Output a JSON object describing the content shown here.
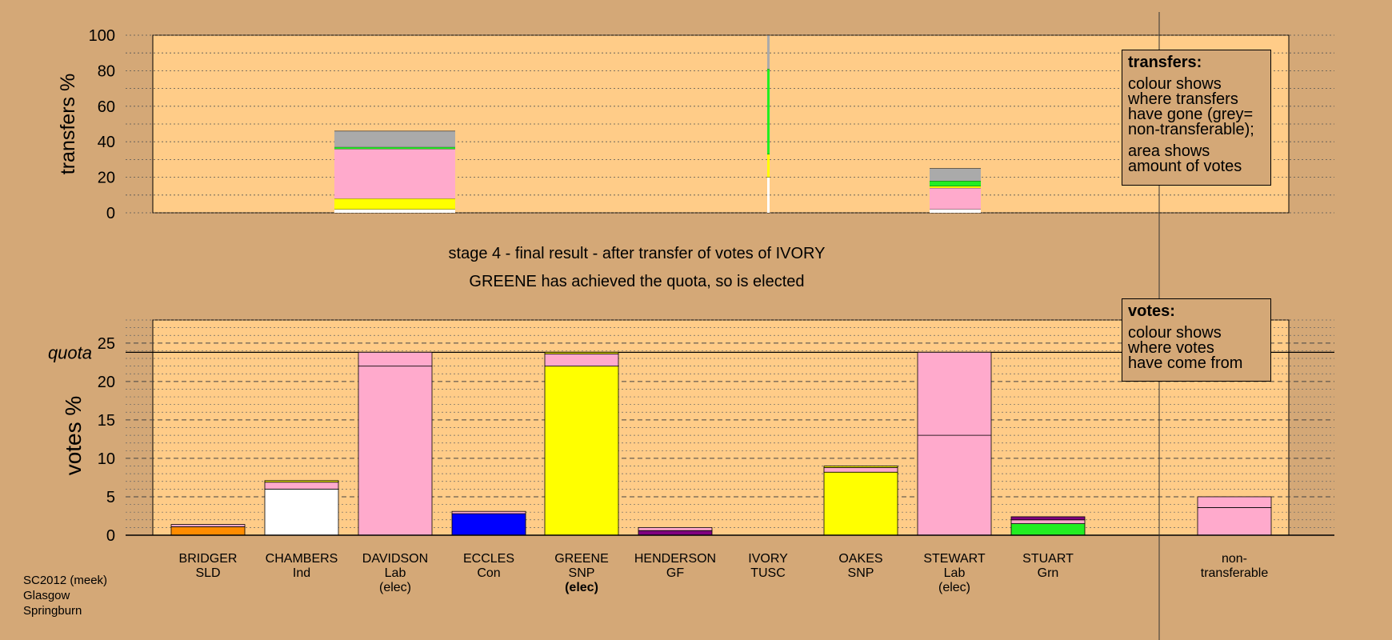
{
  "captions": {
    "stage_line": "stage 4 - final result - after transfer of votes of IVORY",
    "result_line": "GREENE has achieved the quota, so is elected"
  },
  "legend_transfers": {
    "title": "transfers:",
    "lines_a": [
      "colour shows",
      "where transfers",
      "have gone (grey=",
      "non-transferable);"
    ],
    "lines_b": [
      "area shows",
      "amount of votes"
    ]
  },
  "legend_votes": {
    "title": "votes:",
    "lines": [
      "colour shows",
      "where votes",
      "have come from"
    ]
  },
  "source": [
    "SC2012 (meek)",
    "Glasgow",
    "Springburn"
  ],
  "colors": {
    "background": "#d4a877",
    "plot_background": "#ffcc88",
    "SLD": "#ff8c00",
    "Ind": "#ffffff",
    "Lab": "#ffaacc",
    "Con": "#0000ff",
    "SNP": "#ffff00",
    "GF": "#800080",
    "TUSC": "#cc0000",
    "Grn": "#22ee22",
    "non_transferable": "#aaaaaa"
  },
  "chart_data": [
    {
      "type": "bar",
      "title": "",
      "ylabel": "transfers %",
      "ylim": [
        0,
        100
      ],
      "yticks": [
        0,
        20,
        40,
        60,
        80,
        100
      ],
      "grid": true,
      "note": "transfers of the votes of IVORY; colour shows where transfers have gone, area shows amount of votes",
      "categories": [
        "DAVIDSON",
        "IVORY",
        "STEWART"
      ],
      "bars": [
        {
          "candidate": "DAVIDSON",
          "segments": [
            {
              "color": "#ffffff",
              "value": 2
            },
            {
              "color": "#ffff00",
              "value": 6
            },
            {
              "color": "#ffaacc",
              "value": 28
            },
            {
              "color": "#22ee22",
              "value": 1
            },
            {
              "color": "#aaaaaa",
              "value": 9
            }
          ]
        },
        {
          "candidate": "IVORY",
          "segments": [
            {
              "color": "#ffffff",
              "value": 20
            },
            {
              "color": "#ffff00",
              "value": 13
            },
            {
              "color": "#22ee22",
              "value": 48
            },
            {
              "color": "#aaaaaa",
              "value": 19
            }
          ]
        },
        {
          "candidate": "STEWART",
          "segments": [
            {
              "color": "#ffffff",
              "value": 2
            },
            {
              "color": "#ffaacc",
              "value": 12
            },
            {
              "color": "#ffff00",
              "value": 1
            },
            {
              "color": "#22ee22",
              "value": 3
            },
            {
              "color": "#aaaaaa",
              "value": 7
            }
          ]
        }
      ]
    },
    {
      "type": "bar",
      "title": "",
      "ylabel": "votes %",
      "ylim": [
        0,
        28
      ],
      "yticks": [
        0,
        5,
        10,
        15,
        20,
        25
      ],
      "grid": true,
      "quota": {
        "label": "quota",
        "value": 23.8
      },
      "note": "colour shows where votes have come from",
      "categories": [
        "BRIDGER",
        "CHAMBERS",
        "DAVIDSON",
        "ECCLES",
        "GREENE",
        "HENDERSON",
        "IVORY",
        "OAKES",
        "STEWART",
        "STUART",
        "non-transferable"
      ],
      "bars": [
        {
          "label_lines": [
            "BRIDGER",
            "SLD"
          ],
          "elected": false,
          "segments": [
            {
              "color": "#ff8c00",
              "value": 1.1
            },
            {
              "color": "#ffaacc",
              "value": 0.3
            }
          ]
        },
        {
          "label_lines": [
            "CHAMBERS",
            "Ind"
          ],
          "elected": false,
          "segments": [
            {
              "color": "#ffffff",
              "value": 6.0
            },
            {
              "color": "#ffaacc",
              "value": 0.9
            },
            {
              "color": "#ffff00",
              "value": 0.2
            }
          ]
        },
        {
          "label_lines": [
            "DAVIDSON",
            "Lab",
            "(elec)"
          ],
          "elected": true,
          "segments": [
            {
              "color": "#ffaacc",
              "value": 22.0
            },
            {
              "color": "#ffaacc",
              "value": 1.8
            }
          ]
        },
        {
          "label_lines": [
            "ECCLES",
            "Con"
          ],
          "elected": false,
          "segments": [
            {
              "color": "#0000ff",
              "value": 2.8
            },
            {
              "color": "#ffaacc",
              "value": 0.3
            }
          ]
        },
        {
          "label_lines": [
            "GREENE",
            "SNP",
            "(elec)"
          ],
          "elected": true,
          "bold_last": true,
          "segments": [
            {
              "color": "#ffff00",
              "value": 22.0
            },
            {
              "color": "#ffaacc",
              "value": 1.6
            },
            {
              "color": "#ffff00",
              "value": 0.2
            }
          ]
        },
        {
          "label_lines": [
            "HENDERSON",
            "GF"
          ],
          "elected": false,
          "segments": [
            {
              "color": "#800080",
              "value": 0.6
            },
            {
              "color": "#ffaacc",
              "value": 0.4
            }
          ]
        },
        {
          "label_lines": [
            "IVORY",
            "TUSC"
          ],
          "elected": false,
          "segments": []
        },
        {
          "label_lines": [
            "OAKES",
            "SNP"
          ],
          "elected": false,
          "segments": [
            {
              "color": "#ffff00",
              "value": 8.2
            },
            {
              "color": "#ffaacc",
              "value": 0.6
            },
            {
              "color": "#ffff00",
              "value": 0.2
            }
          ]
        },
        {
          "label_lines": [
            "STEWART",
            "Lab",
            "(elec)"
          ],
          "elected": true,
          "segments": [
            {
              "color": "#ffaacc",
              "value": 13.0
            },
            {
              "color": "#ffaacc",
              "value": 10.8
            }
          ]
        },
        {
          "label_lines": [
            "STUART",
            "Grn"
          ],
          "elected": false,
          "segments": [
            {
              "color": "#22ee22",
              "value": 1.5
            },
            {
              "color": "#ffaacc",
              "value": 0.5
            },
            {
              "color": "#800080",
              "value": 0.4
            }
          ]
        },
        {
          "label_lines": [
            "non-",
            "transferable"
          ],
          "elected": false,
          "segments": [
            {
              "color": "#ffaacc",
              "value": 3.6
            },
            {
              "color": "#ffaacc",
              "value": 1.4
            }
          ]
        }
      ]
    }
  ]
}
